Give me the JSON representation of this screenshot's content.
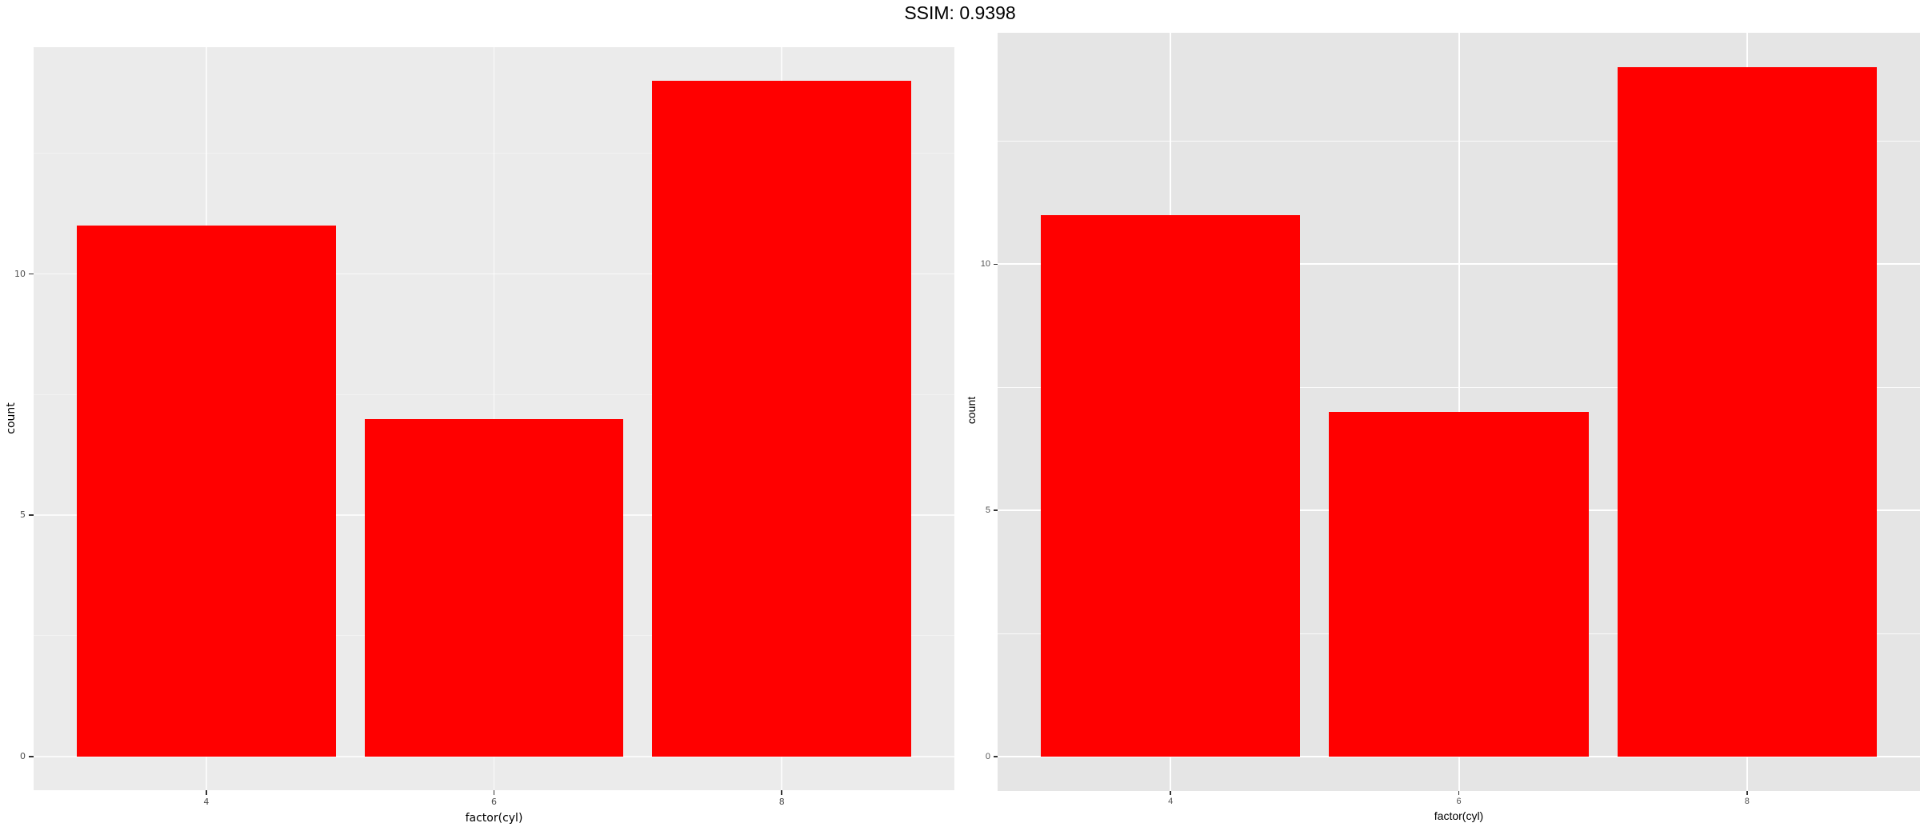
{
  "title": "SSIM: 0.9398",
  "accent_color": "#FF0000",
  "chart_data": [
    {
      "id": "left-plot",
      "type": "bar",
      "title": "",
      "xlabel": "factor(cyl)",
      "ylabel": "count",
      "categories": [
        "4",
        "6",
        "8"
      ],
      "values": [
        11,
        7,
        14
      ],
      "ytick_values": [
        0,
        5,
        10
      ],
      "ytick_labels": [
        "0",
        "5",
        "10"
      ],
      "ylim": [
        -0.7,
        14.7
      ],
      "bar_width_fraction": 0.9,
      "bar_color": "#FF0000",
      "panel_bg": "#EBEBEB",
      "grid_color": "#FFFFFF",
      "grid": "on",
      "legend": "none"
    },
    {
      "id": "right-plot",
      "type": "bar",
      "title": "",
      "xlabel": "factor(cyl)",
      "ylabel": "count",
      "categories": [
        "4",
        "6",
        "8"
      ],
      "values": [
        11,
        7,
        14
      ],
      "ytick_values": [
        0,
        5,
        10
      ],
      "ytick_labels": [
        "0",
        "5",
        "10"
      ],
      "ylim": [
        -0.7,
        14.7
      ],
      "bar_width_fraction": 0.9,
      "bar_color": "#FF0000",
      "panel_bg": "#E5E5E5",
      "grid_color": "#FFFFFF",
      "grid": "on",
      "legend": "none"
    }
  ]
}
